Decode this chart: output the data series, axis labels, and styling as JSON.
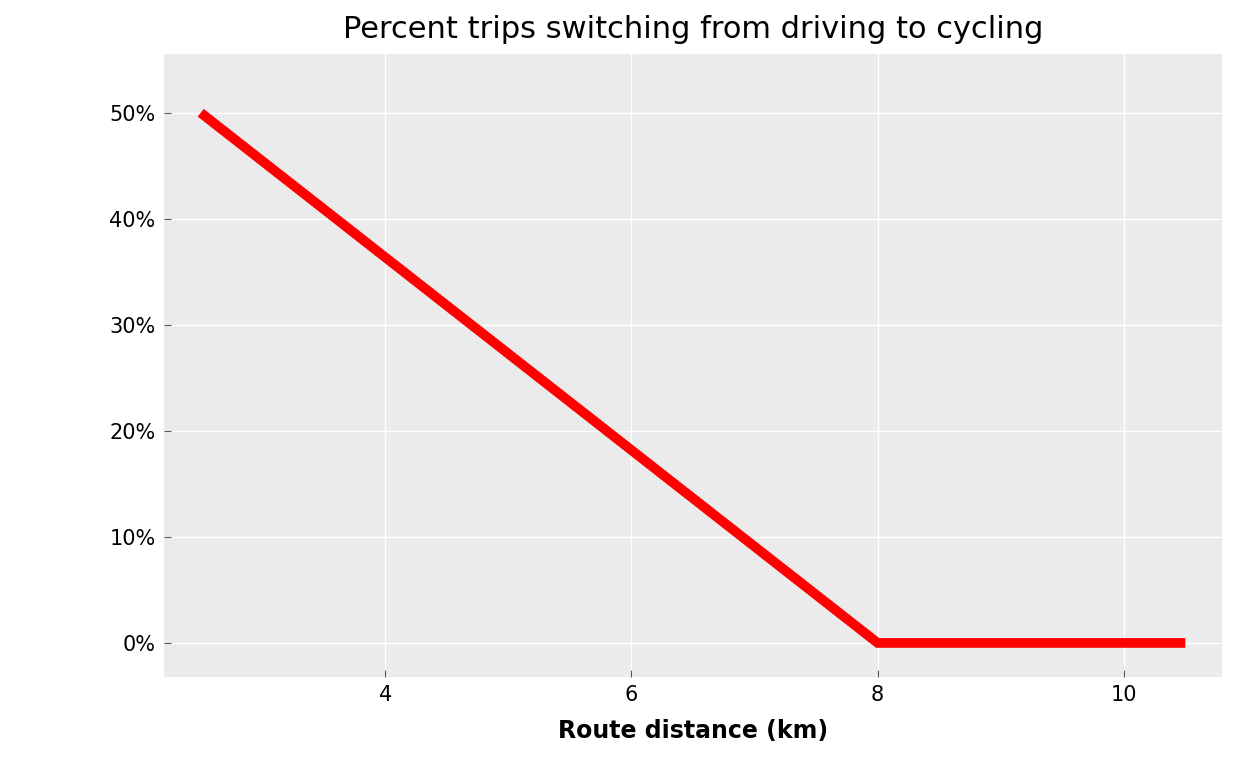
{
  "title": "Percent trips switching from driving to cycling",
  "xlabel": "Route distance (km)",
  "ylabel": "",
  "x_data": [
    2.5,
    8.0,
    10.5
  ],
  "y_data": [
    0.5,
    0.0,
    0.0
  ],
  "line_color": "#FF0000",
  "line_width": 7,
  "panel_background_color": "#EBEBEB",
  "figure_background_color": "#FFFFFF",
  "grid_color": "#FFFFFF",
  "xlim": [
    2.2,
    10.8
  ],
  "ylim": [
    -0.032,
    0.555
  ],
  "xticks": [
    4,
    6,
    8,
    10
  ],
  "yticks": [
    0.0,
    0.1,
    0.2,
    0.3,
    0.4,
    0.5
  ],
  "ytick_labels": [
    "0%",
    "10%",
    "20%",
    "30%",
    "40%",
    "50%"
  ],
  "title_fontsize": 22,
  "label_fontsize": 17,
  "tick_fontsize": 15
}
